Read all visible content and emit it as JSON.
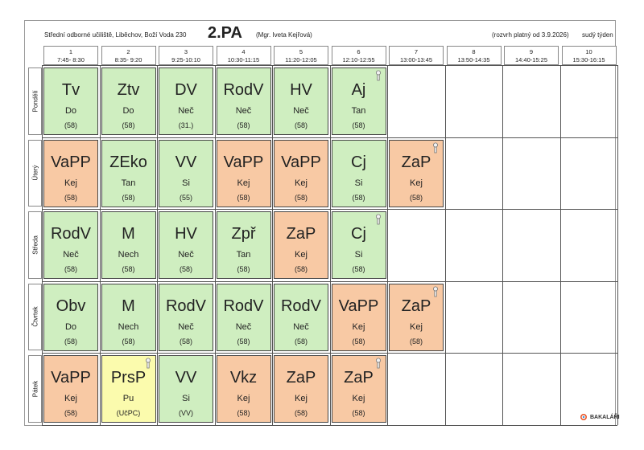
{
  "header": {
    "school": "Střední odborné učiliště, Liběchov, Boží Voda 230",
    "class_name": "2.PA",
    "teacher": "(Mgr. Iveta Kejřová)",
    "validity": "(rozvrh platný od 3.9.2026)",
    "week": "sudý týden"
  },
  "periods": [
    {
      "num": "1",
      "time": "7:45- 8:30"
    },
    {
      "num": "2",
      "time": "8:35- 9:20"
    },
    {
      "num": "3",
      "time": "9:25-10:10"
    },
    {
      "num": "4",
      "time": "10:30-11:15"
    },
    {
      "num": "5",
      "time": "11:20-12:05"
    },
    {
      "num": "6",
      "time": "12:10-12:55"
    },
    {
      "num": "7",
      "time": "13:00-13:45"
    },
    {
      "num": "8",
      "time": "13:50-14:35"
    },
    {
      "num": "9",
      "time": "14:40-15:25"
    },
    {
      "num": "10",
      "time": "15:30-16:15"
    }
  ],
  "days": [
    "Pondělí",
    "Úterý",
    "Středa",
    "Čtvrtek",
    "Pátek"
  ],
  "colors": {
    "green": "#cfeec0",
    "orange": "#f8c9a4",
    "yellow": "#fbfbad"
  },
  "lessons": [
    [
      {
        "subject": "Tv",
        "teacher": "Do",
        "room": "(58)",
        "color": "green",
        "pin": false
      },
      {
        "subject": "Ztv",
        "teacher": "Do",
        "room": "(58)",
        "color": "green",
        "pin": false
      },
      {
        "subject": "DV",
        "teacher": "Neč",
        "room": "(31.)",
        "color": "green",
        "pin": false
      },
      {
        "subject": "RodV",
        "teacher": "Neč",
        "room": "(58)",
        "color": "green",
        "pin": false
      },
      {
        "subject": "HV",
        "teacher": "Neč",
        "room": "(58)",
        "color": "green",
        "pin": false
      },
      {
        "subject": "Aj",
        "teacher": "Tan",
        "room": "(58)",
        "color": "green",
        "pin": true
      }
    ],
    [
      {
        "subject": "VaPP",
        "teacher": "Kej",
        "room": "(58)",
        "color": "orange",
        "pin": false
      },
      {
        "subject": "ZEko",
        "teacher": "Tan",
        "room": "(58)",
        "color": "green",
        "pin": false
      },
      {
        "subject": "VV",
        "teacher": "Si",
        "room": "(55)",
        "color": "green",
        "pin": false
      },
      {
        "subject": "VaPP",
        "teacher": "Kej",
        "room": "(58)",
        "color": "orange",
        "pin": false
      },
      {
        "subject": "VaPP",
        "teacher": "Kej",
        "room": "(58)",
        "color": "orange",
        "pin": false
      },
      {
        "subject": "Cj",
        "teacher": "Si",
        "room": "(58)",
        "color": "green",
        "pin": false
      },
      {
        "subject": "ZaP",
        "teacher": "Kej",
        "room": "(58)",
        "color": "orange",
        "pin": true
      }
    ],
    [
      {
        "subject": "RodV",
        "teacher": "Neč",
        "room": "(58)",
        "color": "green",
        "pin": false
      },
      {
        "subject": "M",
        "teacher": "Nech",
        "room": "(58)",
        "color": "green",
        "pin": false
      },
      {
        "subject": "HV",
        "teacher": "Neč",
        "room": "(58)",
        "color": "green",
        "pin": false
      },
      {
        "subject": "Zpř",
        "teacher": "Tan",
        "room": "(58)",
        "color": "green",
        "pin": false
      },
      {
        "subject": "ZaP",
        "teacher": "Kej",
        "room": "(58)",
        "color": "orange",
        "pin": false
      },
      {
        "subject": "Cj",
        "teacher": "Si",
        "room": "(58)",
        "color": "green",
        "pin": true
      }
    ],
    [
      {
        "subject": "Obv",
        "teacher": "Do",
        "room": "(58)",
        "color": "green",
        "pin": false
      },
      {
        "subject": "M",
        "teacher": "Nech",
        "room": "(58)",
        "color": "green",
        "pin": false
      },
      {
        "subject": "RodV",
        "teacher": "Neč",
        "room": "(58)",
        "color": "green",
        "pin": false
      },
      {
        "subject": "RodV",
        "teacher": "Neč",
        "room": "(58)",
        "color": "green",
        "pin": false
      },
      {
        "subject": "RodV",
        "teacher": "Neč",
        "room": "(58)",
        "color": "green",
        "pin": false
      },
      {
        "subject": "VaPP",
        "teacher": "Kej",
        "room": "(58)",
        "color": "orange",
        "pin": false
      },
      {
        "subject": "ZaP",
        "teacher": "Kej",
        "room": "(58)",
        "color": "orange",
        "pin": true
      }
    ],
    [
      {
        "subject": "VaPP",
        "teacher": "Kej",
        "room": "(58)",
        "color": "orange",
        "pin": false
      },
      {
        "subject": "PrsP",
        "teacher": "Pu",
        "room": "(UčPC)",
        "color": "yellow",
        "pin": true
      },
      {
        "subject": "VV",
        "teacher": "Si",
        "room": "(VV)",
        "color": "green",
        "pin": false
      },
      {
        "subject": "Vkz",
        "teacher": "Kej",
        "room": "(58)",
        "color": "orange",
        "pin": false
      },
      {
        "subject": "ZaP",
        "teacher": "Kej",
        "room": "(58)",
        "color": "orange",
        "pin": false
      },
      {
        "subject": "ZaP",
        "teacher": "Kej",
        "room": "(58)",
        "color": "orange",
        "pin": true
      }
    ]
  ],
  "footer": {
    "logo_text": "BAKALÁŘI"
  }
}
